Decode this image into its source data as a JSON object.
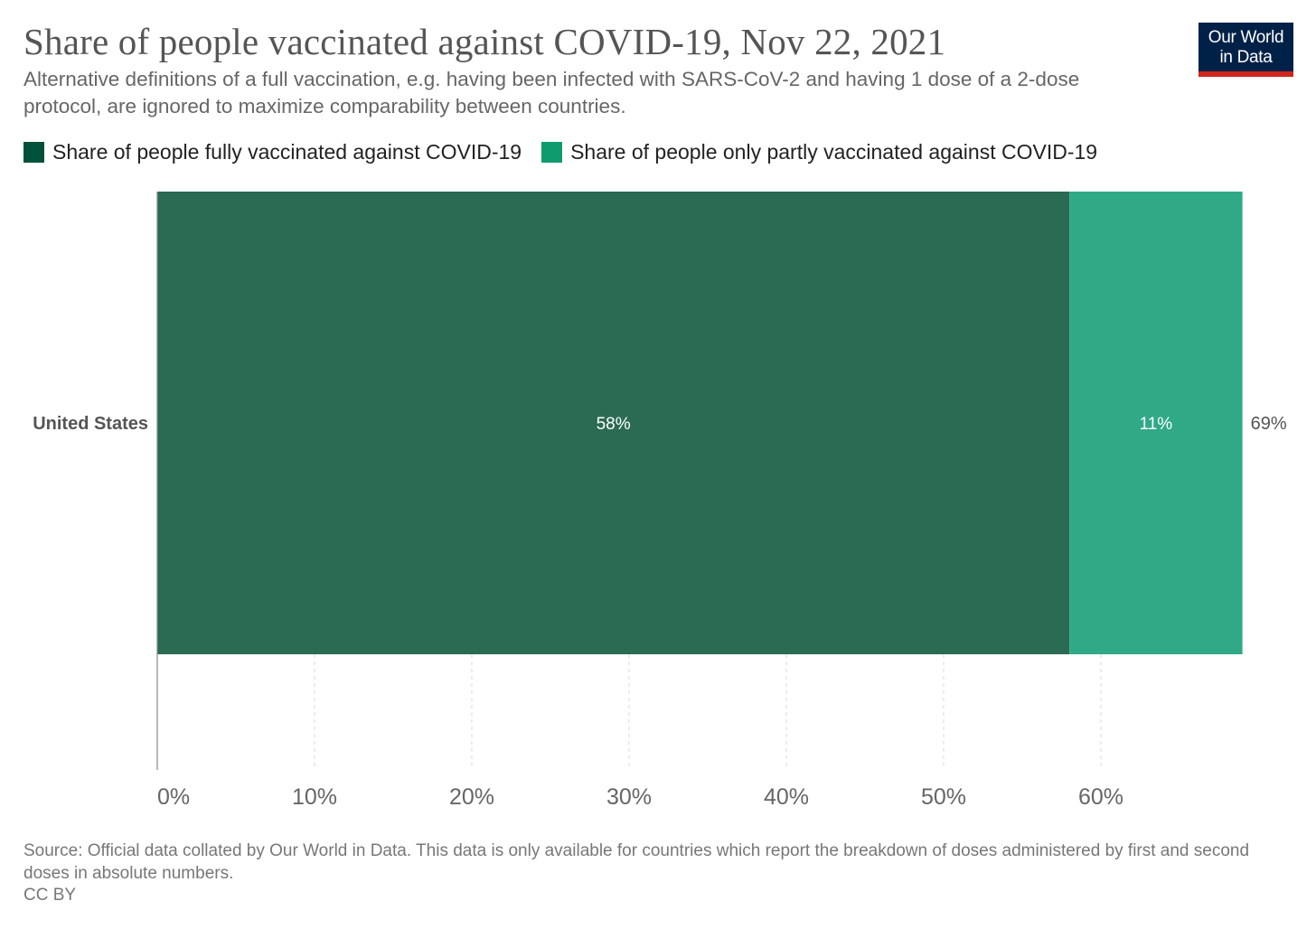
{
  "title": "Share of people vaccinated against COVID-19, Nov 22, 2021",
  "subtitle": "Alternative definitions of a full vaccination, e.g. having been infected with SARS-CoV-2 and having 1 dose of a 2-dose protocol, are ignored to maximize comparability between countries.",
  "logo": {
    "line1": "Our World",
    "line2": "in Data"
  },
  "source": "Source: Official data collated by Our World in Data. This data is only available for countries which report the breakdown of doses administered by first and second doses in absolute numbers.",
  "license": "CC BY",
  "colors": {
    "fully_swatch": "#00523a",
    "partly_swatch": "#0f9b6e",
    "fully_bar": "#2b6a53",
    "partly_bar": "#2fa986",
    "grid": "#d8d8d8",
    "axis": "#888888",
    "tick_label": "#666666",
    "category_label": "#555555",
    "total_label": "#555555",
    "bar_label": "#ffffff"
  },
  "chart_data": {
    "type": "bar",
    "orientation": "horizontal",
    "stacked": true,
    "categories": [
      "United States"
    ],
    "series": [
      {
        "name": "Share of people fully vaccinated against COVID-19",
        "values": [
          58
        ],
        "labels": [
          "58%"
        ]
      },
      {
        "name": "Share of people only partly vaccinated against COVID-19",
        "values": [
          11
        ],
        "labels": [
          "11%"
        ]
      }
    ],
    "totals": [
      "69%"
    ],
    "xlim": [
      0,
      69
    ],
    "ticks": [
      0,
      10,
      20,
      30,
      40,
      50,
      60
    ],
    "tick_labels": [
      "0%",
      "10%",
      "20%",
      "30%",
      "40%",
      "50%",
      "60%"
    ],
    "grid": true,
    "legend_position": "top-left"
  }
}
